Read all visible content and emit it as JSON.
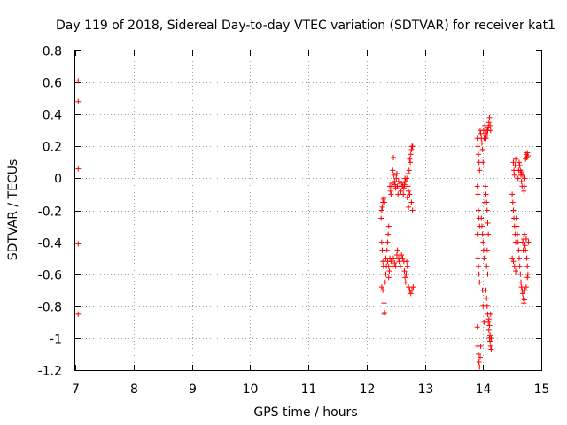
{
  "chart_data": {
    "type": "scatter",
    "title": "Day 119 of 2018, Sidereal Day-to-day VTEC variation (SDTVAR) for receiver kat1",
    "xlabel": "GPS time / hours",
    "ylabel": "SDTVAR / TECUs",
    "xlim": [
      7,
      15
    ],
    "ylim": [
      -1.2,
      0.8
    ],
    "x_ticks": [
      "7",
      "8",
      "9",
      "10",
      "11",
      "12",
      "13",
      "14",
      "15"
    ],
    "y_ticks": [
      "0.8",
      "0.6",
      "0.4",
      "0.2",
      "0",
      "-0.2",
      "-0.4",
      "-0.6",
      "-0.8",
      "-1",
      "-1.2"
    ],
    "grid": true,
    "marker": "+",
    "series": [
      {
        "name": "SDTVAR",
        "color": "#ff0000",
        "points": [
          [
            7.05,
            0.61
          ],
          [
            7.05,
            0.48
          ],
          [
            7.05,
            0.06
          ],
          [
            7.05,
            -0.41
          ],
          [
            7.05,
            -0.85
          ],
          [
            12.25,
            -0.25
          ],
          [
            12.26,
            -0.2
          ],
          [
            12.27,
            -0.18
          ],
          [
            12.28,
            -0.15
          ],
          [
            12.29,
            -0.13
          ],
          [
            12.3,
            -0.12
          ],
          [
            12.31,
            -0.15
          ],
          [
            12.26,
            -0.4
          ],
          [
            12.27,
            -0.45
          ],
          [
            12.28,
            -0.52
          ],
          [
            12.29,
            -0.55
          ],
          [
            12.3,
            -0.6
          ],
          [
            12.26,
            -0.68
          ],
          [
            12.28,
            -0.7
          ],
          [
            12.3,
            -0.78
          ],
          [
            12.3,
            -0.85
          ],
          [
            12.31,
            -0.84
          ],
          [
            12.32,
            -0.65
          ],
          [
            12.33,
            -0.6
          ],
          [
            12.34,
            -0.55
          ],
          [
            12.33,
            -0.5
          ],
          [
            12.35,
            -0.45
          ],
          [
            12.36,
            -0.4
          ],
          [
            12.37,
            -0.35
          ],
          [
            12.38,
            -0.3
          ],
          [
            12.36,
            -0.52
          ],
          [
            12.38,
            -0.55
          ],
          [
            12.39,
            -0.58
          ],
          [
            12.38,
            -0.62
          ],
          [
            12.4,
            -0.5
          ],
          [
            12.4,
            -0.05
          ],
          [
            12.41,
            -0.08
          ],
          [
            12.42,
            -0.1
          ],
          [
            12.43,
            -0.05
          ],
          [
            12.44,
            -0.03
          ],
          [
            12.45,
            0.05
          ],
          [
            12.46,
            0.13
          ],
          [
            12.47,
            0.02
          ],
          [
            12.48,
            -0.02
          ],
          [
            12.49,
            -0.04
          ],
          [
            12.5,
            -0.06
          ],
          [
            12.51,
            0.0
          ],
          [
            12.52,
            0.03
          ],
          [
            12.53,
            -0.05
          ],
          [
            12.54,
            -0.1
          ],
          [
            12.42,
            -0.52
          ],
          [
            12.44,
            -0.55
          ],
          [
            12.46,
            -0.5
          ],
          [
            12.48,
            -0.53
          ],
          [
            12.5,
            -0.55
          ],
          [
            12.52,
            -0.48
          ],
          [
            12.53,
            -0.45
          ],
          [
            12.55,
            -0.5
          ],
          [
            12.56,
            -0.52
          ],
          [
            12.58,
            -0.55
          ],
          [
            12.55,
            -0.02
          ],
          [
            12.57,
            -0.05
          ],
          [
            12.59,
            -0.08
          ],
          [
            12.6,
            -0.03
          ],
          [
            12.62,
            -0.05
          ],
          [
            12.63,
            -0.1
          ],
          [
            12.64,
            -0.06
          ],
          [
            12.65,
            -0.04
          ],
          [
            12.66,
            0.0
          ],
          [
            12.67,
            -0.02
          ],
          [
            12.6,
            -0.48
          ],
          [
            12.62,
            -0.5
          ],
          [
            12.64,
            -0.52
          ],
          [
            12.65,
            -0.58
          ],
          [
            12.66,
            -0.62
          ],
          [
            12.67,
            -0.65
          ],
          [
            12.68,
            -0.6
          ],
          [
            12.69,
            -0.52
          ],
          [
            12.7,
            -0.55
          ],
          [
            12.71,
            -0.05
          ],
          [
            12.72,
            -0.08
          ],
          [
            12.73,
            0.05
          ],
          [
            12.74,
            0.12
          ],
          [
            12.75,
            0.1
          ],
          [
            12.76,
            0.15
          ],
          [
            12.77,
            0.18
          ],
          [
            12.78,
            0.2
          ],
          [
            12.79,
            0.2
          ],
          [
            12.72,
            -0.68
          ],
          [
            12.74,
            -0.7
          ],
          [
            12.76,
            -0.72
          ],
          [
            12.78,
            -0.7
          ],
          [
            12.8,
            -0.68
          ],
          [
            12.77,
            -0.15
          ],
          [
            12.79,
            -0.2
          ],
          [
            12.7,
            -0.12
          ],
          [
            12.72,
            -0.18
          ],
          [
            12.74,
            -0.1
          ],
          [
            12.69,
            0.0
          ],
          [
            12.71,
            0.03
          ],
          [
            13.9,
            0.25
          ],
          [
            13.91,
            0.2
          ],
          [
            13.92,
            0.15
          ],
          [
            13.93,
            0.1
          ],
          [
            13.94,
            0.05
          ],
          [
            13.9,
            -0.05
          ],
          [
            13.91,
            -0.1
          ],
          [
            13.92,
            -0.2
          ],
          [
            13.93,
            -0.25
          ],
          [
            13.94,
            -0.3
          ],
          [
            13.9,
            -0.35
          ],
          [
            13.91,
            -0.5
          ],
          [
            13.92,
            -0.55
          ],
          [
            13.93,
            -0.6
          ],
          [
            13.94,
            -0.65
          ],
          [
            13.9,
            -0.93
          ],
          [
            13.91,
            -1.05
          ],
          [
            13.92,
            -1.1
          ],
          [
            13.93,
            -1.15
          ],
          [
            13.94,
            -1.18
          ],
          [
            13.95,
            -1.12
          ],
          [
            13.96,
            -1.05
          ],
          [
            13.95,
            0.3
          ],
          [
            13.96,
            0.28
          ],
          [
            13.97,
            0.25
          ],
          [
            13.98,
            0.22
          ],
          [
            13.99,
            0.18
          ],
          [
            14.0,
            0.1
          ],
          [
            13.97,
            -0.25
          ],
          [
            13.98,
            -0.3
          ],
          [
            13.99,
            -0.35
          ],
          [
            14.0,
            -0.4
          ],
          [
            14.01,
            -0.45
          ],
          [
            14.02,
            -0.5
          ],
          [
            14.03,
            -0.15
          ],
          [
            14.01,
            0.3
          ],
          [
            14.02,
            0.25
          ],
          [
            14.03,
            0.33
          ],
          [
            14.04,
            0.28
          ],
          [
            14.05,
            0.25
          ],
          [
            14.06,
            0.3
          ],
          [
            14.07,
            0.27
          ],
          [
            14.08,
            0.3
          ],
          [
            14.09,
            0.32
          ],
          [
            14.1,
            0.35
          ],
          [
            14.11,
            0.38
          ],
          [
            14.12,
            0.33
          ],
          [
            14.13,
            0.3
          ],
          [
            14.04,
            -0.05
          ],
          [
            14.05,
            -0.1
          ],
          [
            14.06,
            -0.15
          ],
          [
            14.07,
            -0.2
          ],
          [
            14.08,
            -0.28
          ],
          [
            14.09,
            -0.35
          ],
          [
            14.05,
            -0.7
          ],
          [
            14.06,
            -0.75
          ],
          [
            14.07,
            -0.8
          ],
          [
            14.08,
            -0.85
          ],
          [
            14.09,
            -0.9
          ],
          [
            14.1,
            -0.95
          ],
          [
            14.11,
            -1.0
          ],
          [
            14.12,
            -1.02
          ],
          [
            14.13,
            -1.05
          ],
          [
            14.14,
            -1.07
          ],
          [
            14.1,
            -0.88
          ],
          [
            14.11,
            -0.92
          ],
          [
            14.12,
            -0.98
          ],
          [
            14.13,
            -0.85
          ],
          [
            14.14,
            -1.0
          ],
          [
            14.08,
            -0.6
          ],
          [
            14.06,
            -0.55
          ],
          [
            14.07,
            -0.45
          ],
          [
            13.99,
            -0.7
          ],
          [
            14.0,
            -0.8
          ],
          [
            14.02,
            -0.9
          ],
          [
            14.5,
            -0.1
          ],
          [
            14.51,
            -0.15
          ],
          [
            14.52,
            -0.2
          ],
          [
            14.53,
            -0.25
          ],
          [
            14.54,
            -0.3
          ],
          [
            14.55,
            -0.35
          ],
          [
            14.56,
            -0.4
          ],
          [
            14.52,
            0.1
          ],
          [
            14.53,
            0.05
          ],
          [
            14.54,
            0.02
          ],
          [
            14.55,
            0.08
          ],
          [
            14.56,
            0.12
          ],
          [
            14.5,
            -0.5
          ],
          [
            14.52,
            -0.52
          ],
          [
            14.54,
            -0.55
          ],
          [
            14.56,
            -0.58
          ],
          [
            14.58,
            -0.6
          ],
          [
            14.57,
            -0.25
          ],
          [
            14.58,
            -0.3
          ],
          [
            14.59,
            -0.35
          ],
          [
            14.6,
            -0.4
          ],
          [
            14.61,
            -0.45
          ],
          [
            14.62,
            -0.5
          ],
          [
            14.63,
            -0.55
          ],
          [
            14.6,
            0.0
          ],
          [
            14.61,
            0.05
          ],
          [
            14.62,
            0.1
          ],
          [
            14.63,
            0.08
          ],
          [
            14.64,
            0.05
          ],
          [
            14.65,
            0.02
          ],
          [
            14.66,
            -0.02
          ],
          [
            14.67,
            -0.05
          ],
          [
            14.64,
            -0.6
          ],
          [
            14.65,
            -0.65
          ],
          [
            14.66,
            -0.68
          ],
          [
            14.67,
            -0.7
          ],
          [
            14.68,
            -0.72
          ],
          [
            14.69,
            -0.75
          ],
          [
            14.7,
            -0.78
          ],
          [
            14.71,
            -0.76
          ],
          [
            14.72,
            -0.7
          ],
          [
            14.68,
            -0.4
          ],
          [
            14.69,
            -0.45
          ],
          [
            14.7,
            -0.38
          ],
          [
            14.71,
            -0.35
          ],
          [
            14.72,
            -0.42
          ],
          [
            14.73,
            -0.45
          ],
          [
            14.74,
            -0.38
          ],
          [
            14.75,
            -0.5
          ],
          [
            14.76,
            -0.55
          ],
          [
            14.77,
            -0.6
          ],
          [
            14.73,
            0.12
          ],
          [
            14.74,
            0.15
          ],
          [
            14.75,
            0.13
          ],
          [
            14.76,
            0.16
          ],
          [
            14.77,
            0.14
          ],
          [
            14.7,
            -0.08
          ],
          [
            14.71,
            -0.05
          ],
          [
            14.72,
            0.0
          ],
          [
            14.68,
            0.02
          ],
          [
            14.66,
            0.04
          ],
          [
            14.74,
            -0.68
          ],
          [
            14.76,
            -0.62
          ],
          [
            14.78,
            -0.4
          ]
        ]
      }
    ]
  }
}
